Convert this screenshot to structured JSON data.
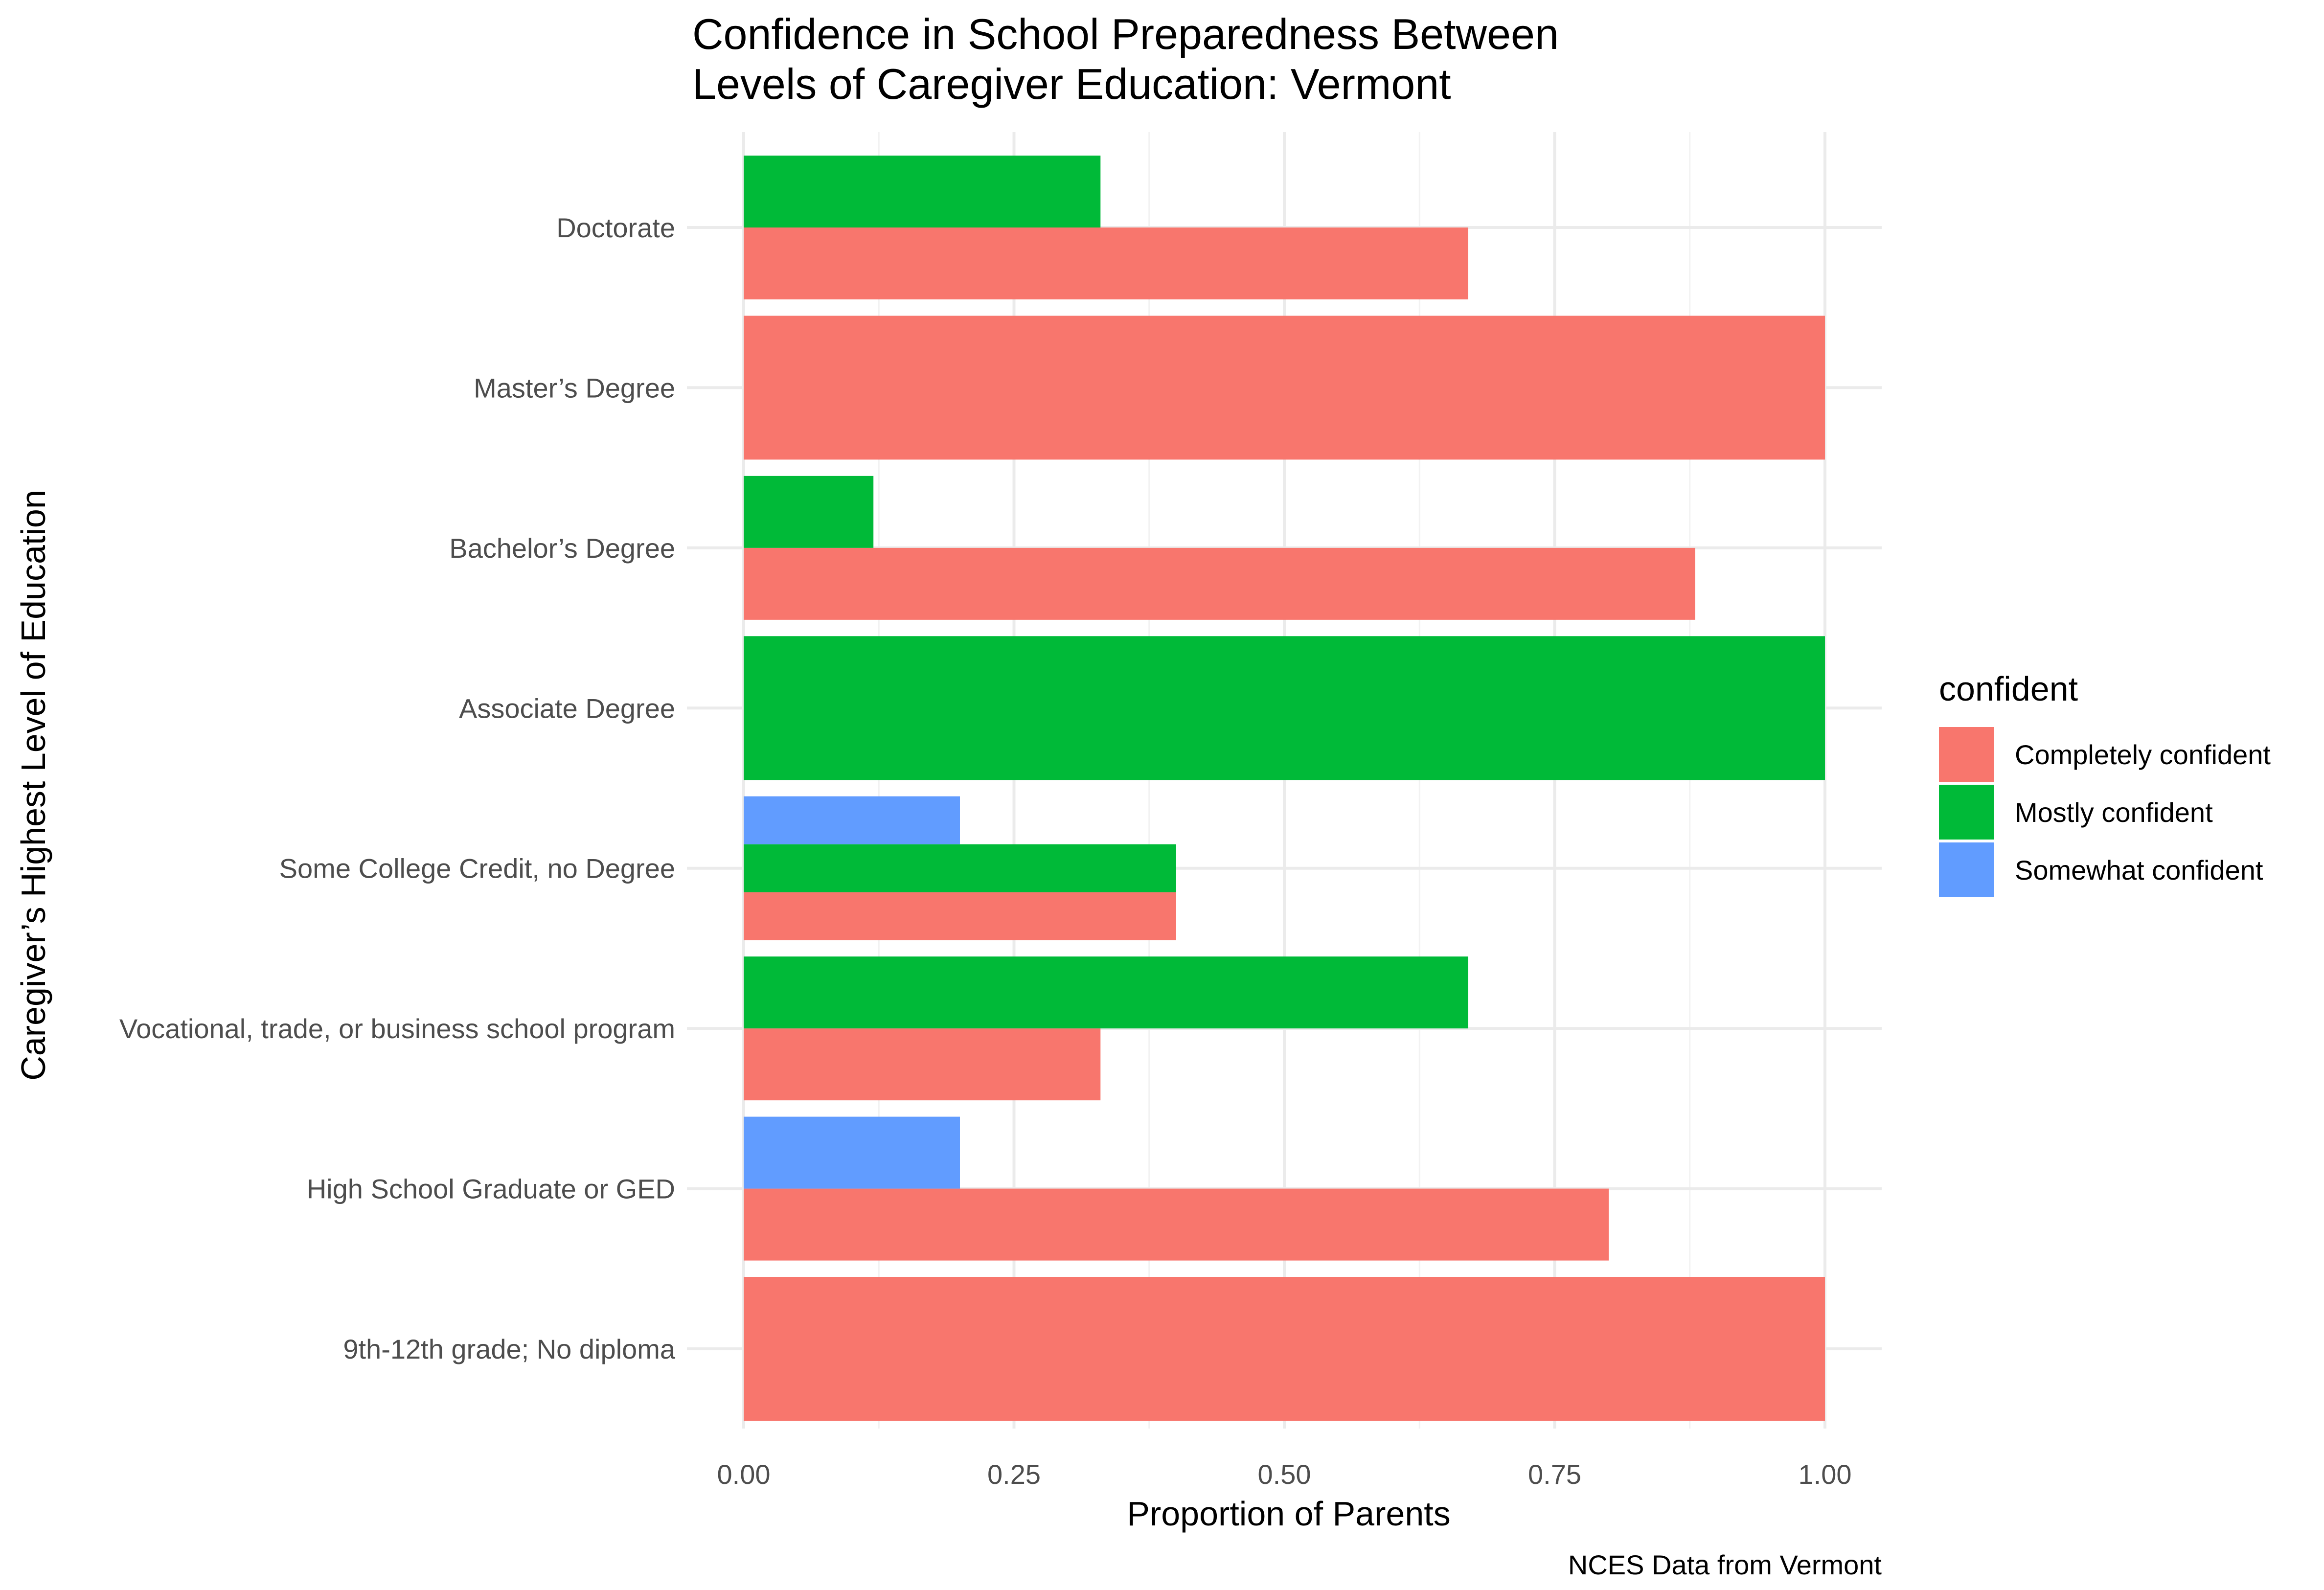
{
  "chart_data": {
    "type": "bar",
    "orientation": "horizontal",
    "position": "dodge",
    "title": [
      "Confidence in School Preparedness Between",
      "Levels of Caregiver Education: Vermont"
    ],
    "xlabel": "Proportion of Parents",
    "ylabel": "Caregiver’s Highest Level of Education",
    "caption": "NCES Data from Vermont",
    "xlim": [
      0,
      1
    ],
    "x_ticks": [
      0,
      0.25,
      0.5,
      0.75,
      1
    ],
    "x_tick_labels": [
      "0.00",
      "0.25",
      "0.50",
      "0.75",
      "1.00"
    ],
    "grid": true,
    "legend": {
      "title": "confident",
      "position": "right",
      "items": [
        {
          "label": "Completely confident",
          "color": "#F8766D"
        },
        {
          "label": "Mostly confident",
          "color": "#00BA38"
        },
        {
          "label": "Somewhat confident",
          "color": "#619CFF"
        }
      ]
    },
    "categories": [
      {
        "label": "Doctorate",
        "values": [
          {
            "group": "Completely confident",
            "value": 0.67
          },
          {
            "group": "Mostly confident",
            "value": 0.33
          }
        ]
      },
      {
        "label": "Master’s Degree",
        "values": [
          {
            "group": "Completely confident",
            "value": 1.0
          }
        ]
      },
      {
        "label": "Bachelor’s Degree",
        "values": [
          {
            "group": "Completely confident",
            "value": 0.88
          },
          {
            "group": "Mostly confident",
            "value": 0.12
          }
        ]
      },
      {
        "label": "Associate Degree",
        "values": [
          {
            "group": "Mostly confident",
            "value": 1.0
          }
        ]
      },
      {
        "label": "Some College Credit, no Degree",
        "values": [
          {
            "group": "Completely confident",
            "value": 0.4
          },
          {
            "group": "Mostly confident",
            "value": 0.4
          },
          {
            "group": "Somewhat confident",
            "value": 0.2
          }
        ]
      },
      {
        "label": "Vocational, trade, or business school program",
        "values": [
          {
            "group": "Completely confident",
            "value": 0.33
          },
          {
            "group": "Mostly confident",
            "value": 0.67
          }
        ]
      },
      {
        "label": "High School Graduate or GED",
        "values": [
          {
            "group": "Completely confident",
            "value": 0.8
          },
          {
            "group": "Somewhat confident",
            "value": 0.2
          }
        ]
      },
      {
        "label": "9th-12th grade; No diploma",
        "values": [
          {
            "group": "Completely confident",
            "value": 1.0
          }
        ]
      }
    ]
  }
}
